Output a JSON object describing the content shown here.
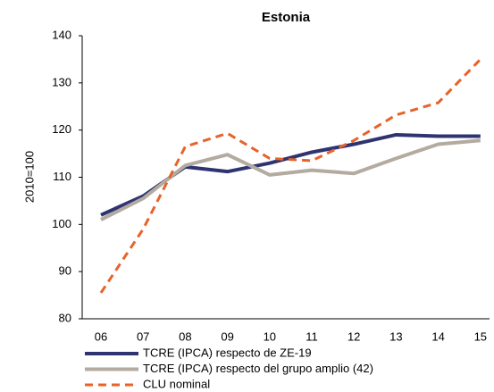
{
  "chart_data": {
    "type": "line",
    "title": "Estonia",
    "y_label": "2010=100",
    "categories": [
      "06",
      "07",
      "08",
      "09",
      "10",
      "11",
      "12",
      "13",
      "14",
      "15"
    ],
    "series": [
      {
        "name": "TCRE (IPCA) respecto de ZE-19",
        "color": "#2e3471",
        "dash": false,
        "values": [
          102,
          106,
          112.2,
          111.2,
          113,
          115.3,
          117,
          119,
          118.7,
          118.7
        ]
      },
      {
        "name": "TCRE (IPCA) respecto del grupo amplio (42)",
        "color": "#b3aaa0",
        "dash": false,
        "values": [
          101,
          105.5,
          112.5,
          114.8,
          110.5,
          111.5,
          110.8,
          114,
          117,
          117.8
        ]
      },
      {
        "name": "CLU nominal",
        "color": "#e8622a",
        "dash": true,
        "values": [
          85.5,
          99,
          116.5,
          119.3,
          114,
          113.5,
          117.8,
          123.2,
          125.8,
          135
        ]
      }
    ],
    "ylim": [
      80,
      140
    ],
    "yticks": [
      80,
      90,
      100,
      110,
      120,
      130,
      140
    ],
    "grid": false
  }
}
